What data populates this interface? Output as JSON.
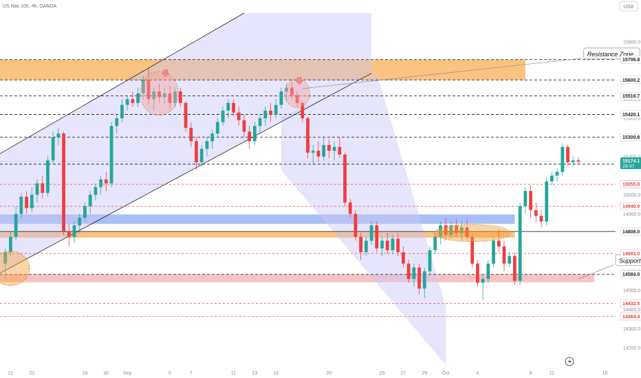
{
  "header": {
    "title": "US Nas 100, 4h, OANDA",
    "currency_label": "USD",
    "tv_logo": "tradingview-logo"
  },
  "chart_data": {
    "type": "candlestick",
    "title": "US Nas 100, 4h, OANDA",
    "ylim": [
      14150,
      15950
    ],
    "grid": false,
    "y_ticks": [
      14200,
      14300,
      14400,
      14500,
      14600,
      14700,
      14900,
      15000,
      15200,
      15300,
      15400,
      15500,
      15600,
      15700,
      15800
    ],
    "y_ticks_display": [
      "14200.0",
      "14300.0",
      "14400.0",
      "14500.0",
      "14600.0",
      "14700.0",
      "14900.0",
      "15000.0",
      "15200.0",
      "15300.0",
      "15400.0",
      "15500.0",
      "15600.0",
      "15700.0",
      "15800.0"
    ],
    "x_ticks": [
      {
        "t": 0,
        "label": "21"
      },
      {
        "t": 2,
        "label": "23"
      },
      {
        "t": 7,
        "label": "28"
      },
      {
        "t": 9,
        "label": "30"
      },
      {
        "t": 11,
        "label": "Sep"
      },
      {
        "t": 15,
        "label": "5"
      },
      {
        "t": 17,
        "label": "7"
      },
      {
        "t": 21,
        "label": "11"
      },
      {
        "t": 23,
        "label": "13"
      },
      {
        "t": 25,
        "label": "15"
      },
      {
        "t": 30,
        "label": "20"
      },
      {
        "t": 35,
        "label": "25"
      },
      {
        "t": 37,
        "label": "27"
      },
      {
        "t": 39,
        "label": "29"
      },
      {
        "t": 41,
        "label": "Oct"
      },
      {
        "t": 44,
        "label": "4"
      },
      {
        "t": 49,
        "label": "9"
      },
      {
        "t": 51,
        "label": "11"
      },
      {
        "t": 56,
        "label": "16"
      }
    ],
    "price_levels": [
      {
        "value": 15706.8,
        "label": "15706.8",
        "style": "dashed-dark",
        "badge": "light"
      },
      {
        "value": 15600.2,
        "label": "15600.2",
        "style": "dashed-dark",
        "badge": "light"
      },
      {
        "value": 15516.7,
        "label": "15516.7",
        "style": "dashed-dark",
        "badge": "light"
      },
      {
        "value": 15420.1,
        "label": "15420.1",
        "style": "dashed-dark",
        "badge": "light"
      },
      {
        "value": 15300.8,
        "label": "15300.8",
        "style": "dashed-dark",
        "badge": "light"
      },
      {
        "value": 15160.0,
        "label": "15160.0",
        "style": "dashed-dark",
        "badge": "light"
      },
      {
        "value": 15055.0,
        "label": "15055.0",
        "style": "dashed-red",
        "badge": "red-text"
      },
      {
        "value": 14940.0,
        "label": "14940.0",
        "style": "dashed-red",
        "badge": "red-text"
      },
      {
        "value": 14808.0,
        "label": "14808.0",
        "style": "solid-dark",
        "badge": "light"
      },
      {
        "value": 14693.0,
        "label": "14693.0",
        "style": "dashed-red",
        "badge": "red-text"
      },
      {
        "value": 14584.0,
        "label": "14584.0",
        "style": "dashed-dark",
        "badge": "light"
      },
      {
        "value": 14432.5,
        "label": "14432.5",
        "style": "dashed-red",
        "badge": "red-text"
      },
      {
        "value": 14364.4,
        "label": "14364.4",
        "style": "dashed-red",
        "badge": "red-text"
      }
    ],
    "current_price": {
      "value": 15174.1,
      "label": "15174.1",
      "countdown": "28:47"
    },
    "zones": [
      {
        "name": "resistance",
        "t_start": -1,
        "t_end": 48.5,
        "top": 15706.8,
        "bottom": 15600.2,
        "color": "#f7a23b"
      },
      {
        "name": "blue-band",
        "t_start": -1,
        "t_end": 47.5,
        "top": 14897,
        "bottom": 14848,
        "color": "#7a9cf0"
      },
      {
        "name": "orange-band",
        "t_start": -1,
        "t_end": 47.5,
        "top": 14808,
        "bottom": 14776,
        "color": "#f7a23b"
      },
      {
        "name": "support",
        "t_start": -1,
        "t_end": 55,
        "top": 14584,
        "bottom": 14543,
        "color": "#f4a3a3"
      }
    ],
    "channel": {
      "lower_start": [
        -1,
        14590
      ],
      "lower_end": [
        34,
        15635
      ],
      "upper_start": [
        -1,
        15215
      ],
      "upper_end": [
        22,
        15950
      ]
    },
    "down_channel": [
      [
        25.5,
        15405
      ],
      [
        34.5,
        15635
      ],
      [
        41,
        14420
      ],
      [
        41,
        14110
      ],
      [
        25.5,
        15130
      ]
    ],
    "annotations": [
      {
        "text": "Resistance Zone",
        "t": 54,
        "v": 15735,
        "arrow_to": [
          27.5,
          15555
        ]
      },
      {
        "text": "Support Zone",
        "t": 57,
        "v": 14655,
        "arrow_to": [
          53.5,
          14560
        ]
      }
    ],
    "highlight_ellipses": [
      {
        "t": 14,
        "v": 15530,
        "rt": 1.8,
        "rv": 115,
        "color": "#f4a3a3"
      },
      {
        "t": 27,
        "v": 15530,
        "rt": 1.2,
        "rv": 75,
        "color": "#f4a3a3"
      },
      {
        "t": 0,
        "v": 14615,
        "rt": 1.8,
        "rv": 90,
        "color": "#f7a23b"
      },
      {
        "t": 43.5,
        "v": 14800,
        "rt": 3.6,
        "rv": 45,
        "color": "#f7a23b"
      }
    ],
    "candles": [
      {
        "t": -0.5,
        "o": 14640,
        "h": 14720,
        "l": 14560,
        "c": 14700
      },
      {
        "t": 0.0,
        "o": 14700,
        "h": 14810,
        "l": 14680,
        "c": 14780
      },
      {
        "t": 0.5,
        "o": 14780,
        "h": 14940,
        "l": 14760,
        "c": 14900
      },
      {
        "t": 1.0,
        "o": 14900,
        "h": 15010,
        "l": 14880,
        "c": 14990
      },
      {
        "t": 1.5,
        "o": 14990,
        "h": 15020,
        "l": 14900,
        "c": 14930
      },
      {
        "t": 2.0,
        "o": 14930,
        "h": 15040,
        "l": 14910,
        "c": 15000
      },
      {
        "t": 2.5,
        "o": 15000,
        "h": 15080,
        "l": 14960,
        "c": 15060
      },
      {
        "t": 3.0,
        "o": 15060,
        "h": 15100,
        "l": 14980,
        "c": 15010
      },
      {
        "t": 3.5,
        "o": 15010,
        "h": 15200,
        "l": 14990,
        "c": 15180
      },
      {
        "t": 4.0,
        "o": 15180,
        "h": 15330,
        "l": 15160,
        "c": 15300
      },
      {
        "t": 4.5,
        "o": 15300,
        "h": 15350,
        "l": 15260,
        "c": 15320
      },
      {
        "t": 5.0,
        "o": 15320,
        "h": 15330,
        "l": 14790,
        "c": 14810
      },
      {
        "t": 5.5,
        "o": 14810,
        "h": 14850,
        "l": 14730,
        "c": 14780
      },
      {
        "t": 6.0,
        "o": 14780,
        "h": 14860,
        "l": 14750,
        "c": 14840
      },
      {
        "t": 6.5,
        "o": 14840,
        "h": 14900,
        "l": 14800,
        "c": 14880
      },
      {
        "t": 7.0,
        "o": 14880,
        "h": 14960,
        "l": 14860,
        "c": 14940
      },
      {
        "t": 7.5,
        "o": 14940,
        "h": 15020,
        "l": 14900,
        "c": 15000
      },
      {
        "t": 8.0,
        "o": 15000,
        "h": 15060,
        "l": 14970,
        "c": 15040
      },
      {
        "t": 8.5,
        "o": 15040,
        "h": 15100,
        "l": 15000,
        "c": 15080
      },
      {
        "t": 9.0,
        "o": 15080,
        "h": 15120,
        "l": 15020,
        "c": 15060
      },
      {
        "t": 9.5,
        "o": 15060,
        "h": 15380,
        "l": 15040,
        "c": 15360
      },
      {
        "t": 10.0,
        "o": 15360,
        "h": 15420,
        "l": 15320,
        "c": 15400
      },
      {
        "t": 10.5,
        "o": 15400,
        "h": 15500,
        "l": 15380,
        "c": 15470
      },
      {
        "t": 11.0,
        "o": 15470,
        "h": 15520,
        "l": 15440,
        "c": 15500
      },
      {
        "t": 11.5,
        "o": 15500,
        "h": 15540,
        "l": 15460,
        "c": 15480
      },
      {
        "t": 12.0,
        "o": 15480,
        "h": 15560,
        "l": 15460,
        "c": 15530
      },
      {
        "t": 12.5,
        "o": 15530,
        "h": 15620,
        "l": 15500,
        "c": 15600
      },
      {
        "t": 13.0,
        "o": 15600,
        "h": 15660,
        "l": 15470,
        "c": 15500
      },
      {
        "t": 13.5,
        "o": 15500,
        "h": 15560,
        "l": 15440,
        "c": 15540
      },
      {
        "t": 14.0,
        "o": 15540,
        "h": 15580,
        "l": 15480,
        "c": 15510
      },
      {
        "t": 14.5,
        "o": 15510,
        "h": 15560,
        "l": 15470,
        "c": 15530
      },
      {
        "t": 15.0,
        "o": 15530,
        "h": 15570,
        "l": 15450,
        "c": 15480
      },
      {
        "t": 15.5,
        "o": 15480,
        "h": 15560,
        "l": 15460,
        "c": 15540
      },
      {
        "t": 16.0,
        "o": 15540,
        "h": 15560,
        "l": 15460,
        "c": 15480
      },
      {
        "t": 16.5,
        "o": 15480,
        "h": 15490,
        "l": 15330,
        "c": 15350
      },
      {
        "t": 17.0,
        "o": 15350,
        "h": 15380,
        "l": 15250,
        "c": 15280
      },
      {
        "t": 17.5,
        "o": 15280,
        "h": 15300,
        "l": 15130,
        "c": 15170
      },
      {
        "t": 18.0,
        "o": 15170,
        "h": 15260,
        "l": 15150,
        "c": 15240
      },
      {
        "t": 18.5,
        "o": 15240,
        "h": 15300,
        "l": 15200,
        "c": 15280
      },
      {
        "t": 19.0,
        "o": 15280,
        "h": 15340,
        "l": 15240,
        "c": 15320
      },
      {
        "t": 19.5,
        "o": 15320,
        "h": 15400,
        "l": 15300,
        "c": 15380
      },
      {
        "t": 20.0,
        "o": 15380,
        "h": 15460,
        "l": 15360,
        "c": 15440
      },
      {
        "t": 20.5,
        "o": 15440,
        "h": 15500,
        "l": 15400,
        "c": 15480
      },
      {
        "t": 21.0,
        "o": 15480,
        "h": 15500,
        "l": 15410,
        "c": 15430
      },
      {
        "t": 21.5,
        "o": 15430,
        "h": 15460,
        "l": 15360,
        "c": 15390
      },
      {
        "t": 22.0,
        "o": 15390,
        "h": 15420,
        "l": 15300,
        "c": 15330
      },
      {
        "t": 22.5,
        "o": 15330,
        "h": 15360,
        "l": 15240,
        "c": 15280
      },
      {
        "t": 23.0,
        "o": 15280,
        "h": 15380,
        "l": 15260,
        "c": 15360
      },
      {
        "t": 23.5,
        "o": 15360,
        "h": 15420,
        "l": 15320,
        "c": 15400
      },
      {
        "t": 24.0,
        "o": 15400,
        "h": 15460,
        "l": 15360,
        "c": 15440
      },
      {
        "t": 24.5,
        "o": 15440,
        "h": 15480,
        "l": 15380,
        "c": 15420
      },
      {
        "t": 25.0,
        "o": 15420,
        "h": 15500,
        "l": 15400,
        "c": 15470
      },
      {
        "t": 25.5,
        "o": 15470,
        "h": 15560,
        "l": 15450,
        "c": 15540
      },
      {
        "t": 26.0,
        "o": 15540,
        "h": 15580,
        "l": 15490,
        "c": 15560
      },
      {
        "t": 26.5,
        "o": 15560,
        "h": 15590,
        "l": 15500,
        "c": 15520
      },
      {
        "t": 27.0,
        "o": 15520,
        "h": 15540,
        "l": 15460,
        "c": 15480
      },
      {
        "t": 27.5,
        "o": 15480,
        "h": 15490,
        "l": 15380,
        "c": 15400
      },
      {
        "t": 28.0,
        "o": 15400,
        "h": 15410,
        "l": 15190,
        "c": 15220
      },
      {
        "t": 28.5,
        "o": 15220,
        "h": 15260,
        "l": 15160,
        "c": 15230
      },
      {
        "t": 29.0,
        "o": 15230,
        "h": 15280,
        "l": 15170,
        "c": 15200
      },
      {
        "t": 29.5,
        "o": 15200,
        "h": 15300,
        "l": 15180,
        "c": 15260
      },
      {
        "t": 30.0,
        "o": 15260,
        "h": 15290,
        "l": 15190,
        "c": 15230
      },
      {
        "t": 30.5,
        "o": 15230,
        "h": 15280,
        "l": 15180,
        "c": 15250
      },
      {
        "t": 31.0,
        "o": 15250,
        "h": 15300,
        "l": 15190,
        "c": 15210
      },
      {
        "t": 31.5,
        "o": 15210,
        "h": 15220,
        "l": 14940,
        "c": 14960
      },
      {
        "t": 32.0,
        "o": 14960,
        "h": 14980,
        "l": 14880,
        "c": 14900
      },
      {
        "t": 32.5,
        "o": 14900,
        "h": 14920,
        "l": 14760,
        "c": 14780
      },
      {
        "t": 33.0,
        "o": 14780,
        "h": 14800,
        "l": 14660,
        "c": 14700
      },
      {
        "t": 33.5,
        "o": 14700,
        "h": 14780,
        "l": 14680,
        "c": 14760
      },
      {
        "t": 34.0,
        "o": 14760,
        "h": 14860,
        "l": 14740,
        "c": 14840
      },
      {
        "t": 34.5,
        "o": 14840,
        "h": 14860,
        "l": 14700,
        "c": 14720
      },
      {
        "t": 35.0,
        "o": 14720,
        "h": 14780,
        "l": 14680,
        "c": 14760
      },
      {
        "t": 35.5,
        "o": 14760,
        "h": 14800,
        "l": 14690,
        "c": 14710
      },
      {
        "t": 36.0,
        "o": 14710,
        "h": 14790,
        "l": 14690,
        "c": 14770
      },
      {
        "t": 36.5,
        "o": 14770,
        "h": 14800,
        "l": 14680,
        "c": 14700
      },
      {
        "t": 37.0,
        "o": 14700,
        "h": 14730,
        "l": 14620,
        "c": 14640
      },
      {
        "t": 37.5,
        "o": 14640,
        "h": 14660,
        "l": 14540,
        "c": 14560
      },
      {
        "t": 38.0,
        "o": 14560,
        "h": 14640,
        "l": 14520,
        "c": 14620
      },
      {
        "t": 38.5,
        "o": 14620,
        "h": 14640,
        "l": 14480,
        "c": 14510
      },
      {
        "t": 39.0,
        "o": 14510,
        "h": 14620,
        "l": 14460,
        "c": 14600
      },
      {
        "t": 39.5,
        "o": 14600,
        "h": 14730,
        "l": 14580,
        "c": 14710
      },
      {
        "t": 40.0,
        "o": 14710,
        "h": 14800,
        "l": 14690,
        "c": 14780
      },
      {
        "t": 40.5,
        "o": 14780,
        "h": 14860,
        "l": 14740,
        "c": 14840
      },
      {
        "t": 41.0,
        "o": 14840,
        "h": 14880,
        "l": 14760,
        "c": 14790
      },
      {
        "t": 41.5,
        "o": 14790,
        "h": 14860,
        "l": 14770,
        "c": 14840
      },
      {
        "t": 42.0,
        "o": 14840,
        "h": 14870,
        "l": 14780,
        "c": 14800
      },
      {
        "t": 42.5,
        "o": 14800,
        "h": 14860,
        "l": 14760,
        "c": 14830
      },
      {
        "t": 43.0,
        "o": 14830,
        "h": 14870,
        "l": 14760,
        "c": 14780
      },
      {
        "t": 43.5,
        "o": 14780,
        "h": 14800,
        "l": 14620,
        "c": 14640
      },
      {
        "t": 44.0,
        "o": 14640,
        "h": 14660,
        "l": 14520,
        "c": 14540
      },
      {
        "t": 44.5,
        "o": 14540,
        "h": 14580,
        "l": 14450,
        "c": 14560
      },
      {
        "t": 45.0,
        "o": 14560,
        "h": 14660,
        "l": 14540,
        "c": 14640
      },
      {
        "t": 45.5,
        "o": 14640,
        "h": 14780,
        "l": 14620,
        "c": 14760
      },
      {
        "t": 46.0,
        "o": 14760,
        "h": 14820,
        "l": 14700,
        "c": 14730
      },
      {
        "t": 46.5,
        "o": 14730,
        "h": 14760,
        "l": 14600,
        "c": 14640
      },
      {
        "t": 47.0,
        "o": 14640,
        "h": 14700,
        "l": 14620,
        "c": 14680
      },
      {
        "t": 47.5,
        "o": 14680,
        "h": 14700,
        "l": 14530,
        "c": 14550
      },
      {
        "t": 48.0,
        "o": 14550,
        "h": 14960,
        "l": 14530,
        "c": 14940
      },
      {
        "t": 48.5,
        "o": 14940,
        "h": 15040,
        "l": 14900,
        "c": 15020
      },
      {
        "t": 49.0,
        "o": 15020,
        "h": 15050,
        "l": 14880,
        "c": 14920
      },
      {
        "t": 49.5,
        "o": 14920,
        "h": 14960,
        "l": 14860,
        "c": 14890
      },
      {
        "t": 50.0,
        "o": 14890,
        "h": 14920,
        "l": 14830,
        "c": 14860
      },
      {
        "t": 50.5,
        "o": 14860,
        "h": 15090,
        "l": 14840,
        "c": 15070
      },
      {
        "t": 51.0,
        "o": 15070,
        "h": 15120,
        "l": 15050,
        "c": 15100
      },
      {
        "t": 51.5,
        "o": 15100,
        "h": 15140,
        "l": 15070,
        "c": 15120
      },
      {
        "t": 52.0,
        "o": 15120,
        "h": 15270,
        "l": 15100,
        "c": 15250
      },
      {
        "t": 52.5,
        "o": 15250,
        "h": 15260,
        "l": 15150,
        "c": 15170
      },
      {
        "t": 53.0,
        "o": 15170,
        "h": 15200,
        "l": 15150,
        "c": 15180
      },
      {
        "t": 53.5,
        "o": 15180,
        "h": 15195,
        "l": 15160,
        "c": 15174
      }
    ]
  }
}
